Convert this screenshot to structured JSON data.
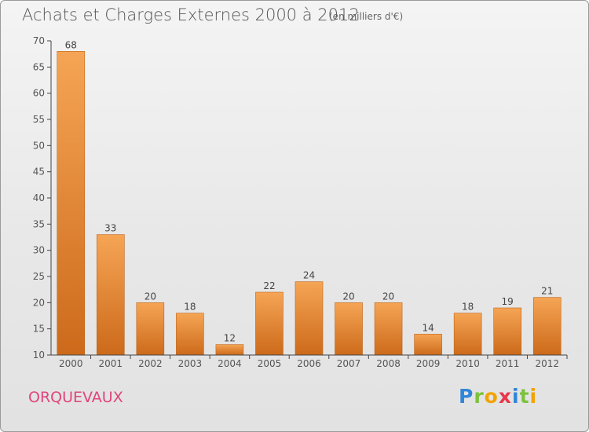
{
  "header": {
    "title": "Achats et Charges Externes 2000 à 2012",
    "unit": "(en milliers d'€)"
  },
  "footer": {
    "commune": "ORQUEVAUX",
    "logo_letters": [
      "P",
      "r",
      "o",
      "x",
      "i",
      "t",
      "i"
    ]
  },
  "colors": {
    "bar_top": "#f5a555",
    "bar_bottom": "#cc6a1a",
    "axis": "#444444",
    "grid": "#c8c8c8",
    "commune": "#e0457b"
  },
  "chart_data": {
    "type": "bar",
    "title": "Achats et Charges Externes 2000 à 2012",
    "subtitle": "(en milliers d'€)",
    "xlabel": "",
    "ylabel": "",
    "categories": [
      "2000",
      "2001",
      "2002",
      "2003",
      "2004",
      "2005",
      "2006",
      "2007",
      "2008",
      "2009",
      "2010",
      "2011",
      "2012"
    ],
    "values": [
      68,
      33,
      20,
      18,
      12,
      22,
      24,
      20,
      20,
      14,
      18,
      19,
      21
    ],
    "ylim": [
      10,
      70
    ],
    "yticks": [
      10,
      15,
      20,
      25,
      30,
      35,
      40,
      45,
      50,
      55,
      60,
      65,
      70
    ],
    "grid": false,
    "legend": "none"
  }
}
